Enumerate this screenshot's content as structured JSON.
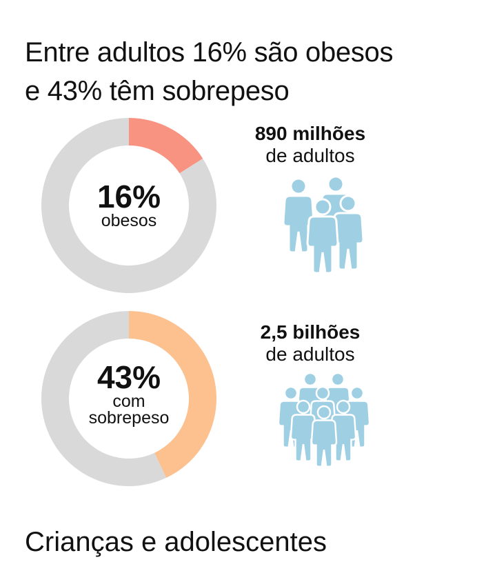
{
  "title": {
    "line1": "Entre adultos 16% são obesos",
    "line2": "e 43% têm sobrepeso"
  },
  "chart_data": [
    {
      "type": "pie",
      "style": "donut",
      "values": [
        16,
        84
      ],
      "highlight_color": "#F99381",
      "rest_color": "#D9D9D9",
      "center_value": "16%",
      "center_label": [
        "obesos"
      ],
      "count_line1": "890 milhões",
      "count_line2": "de adultos",
      "people_icons": 4
    },
    {
      "type": "pie",
      "style": "donut",
      "values": [
        43,
        57
      ],
      "highlight_color": "#FDC08F",
      "rest_color": "#D9D9D9",
      "center_value": "43%",
      "center_label": [
        "com",
        "sobrepeso"
      ],
      "count_line1": "2,5 bilhões",
      "count_line2": "de adultos",
      "people_icons": 9
    }
  ],
  "people_color": "#9ECFE2",
  "footer": "Crianças e adolescentes"
}
